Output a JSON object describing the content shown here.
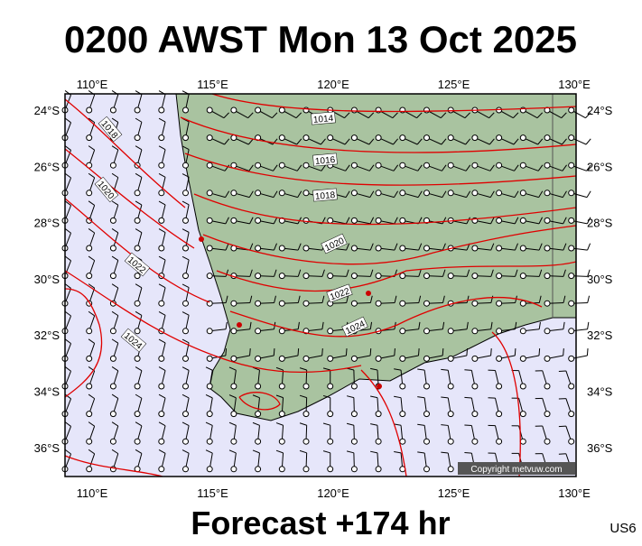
{
  "header": {
    "title": "0200 AWST Mon 13 Oct 2025"
  },
  "axes": {
    "lon": [
      "110°E",
      "115°E",
      "120°E",
      "125°E",
      "130°E"
    ],
    "lat": [
      "24°S",
      "26°S",
      "28°S",
      "30°S",
      "32°S",
      "34°S",
      "36°S"
    ]
  },
  "isobars": [
    "1014",
    "1016",
    "1018",
    "1020",
    "1022",
    "1024",
    "1018",
    "1020",
    "1022",
    "1024"
  ],
  "copyright": "Copyright metvuw.com",
  "footer": {
    "forecast": "Forecast +174 hr",
    "code": "US6"
  }
}
